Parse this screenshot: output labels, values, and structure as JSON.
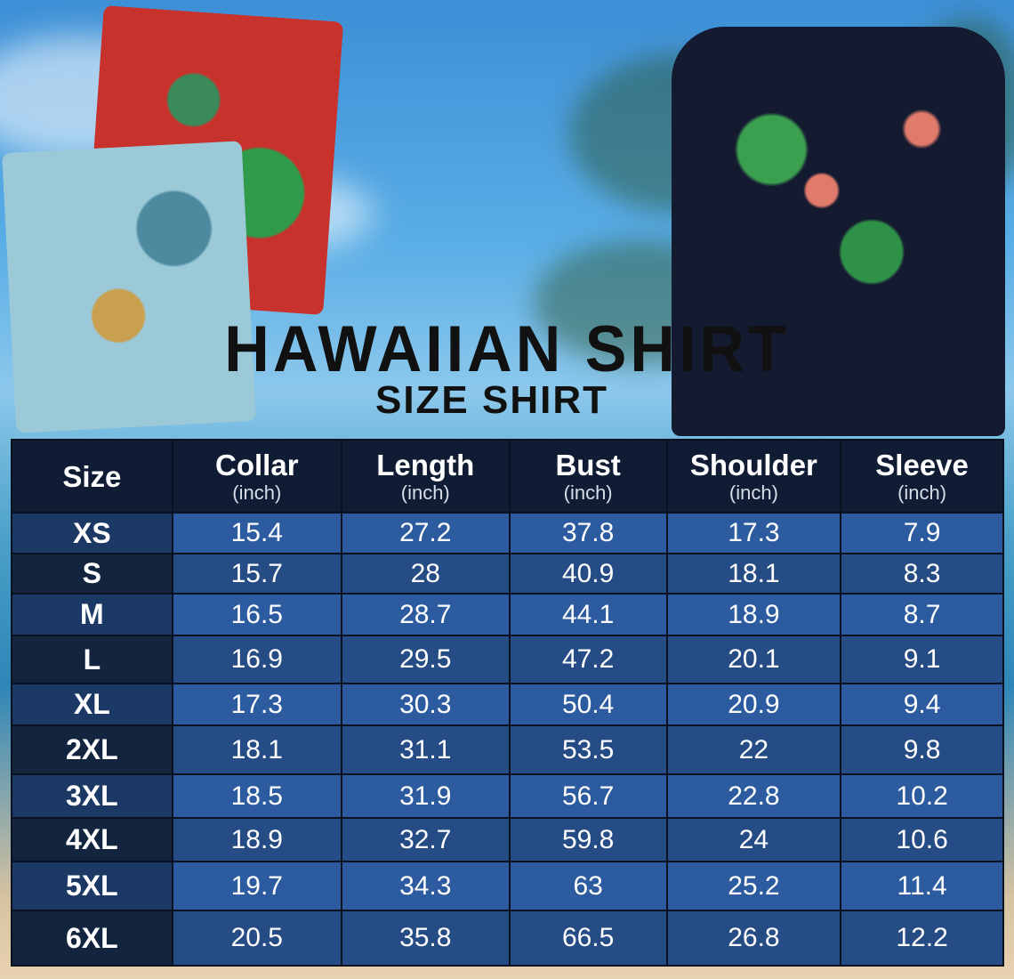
{
  "title": "HAWAIIAN SHIRT",
  "subtitle": "SIZE SHIRT",
  "table": {
    "headers": [
      {
        "label": "Size",
        "unit": ""
      },
      {
        "label": "Collar",
        "unit": "(inch)"
      },
      {
        "label": "Length",
        "unit": "(inch)"
      },
      {
        "label": "Bust",
        "unit": "(inch)"
      },
      {
        "label": "Shoulder",
        "unit": "(inch)"
      },
      {
        "label": "Sleeve",
        "unit": "(inch)"
      }
    ],
    "rows": [
      [
        "XS",
        "15.4",
        "27.2",
        "37.8",
        "17.3",
        "7.9"
      ],
      [
        "S",
        "15.7",
        "28",
        "40.9",
        "18.1",
        "8.3"
      ],
      [
        "M",
        "16.5",
        "28.7",
        "44.1",
        "18.9",
        "8.7"
      ],
      [
        "L",
        "16.9",
        "29.5",
        "47.2",
        "20.1",
        "9.1"
      ],
      [
        "XL",
        "17.3",
        "30.3",
        "50.4",
        "20.9",
        "9.4"
      ],
      [
        "2XL",
        "18.1",
        "31.1",
        "53.5",
        "22",
        "9.8"
      ],
      [
        "3XL",
        "18.5",
        "31.9",
        "56.7",
        "22.8",
        "10.2"
      ],
      [
        "4XL",
        "18.9",
        "32.7",
        "59.8",
        "24",
        "10.6"
      ],
      [
        "5XL",
        "19.7",
        "34.3",
        "63",
        "25.2",
        "11.4"
      ],
      [
        "6XL",
        "20.5",
        "35.8",
        "66.5",
        "26.8",
        "12.2"
      ]
    ]
  },
  "colors": {
    "header": "#0f1c33",
    "row_light": "#2c5c9f",
    "row_dark": "#264c86"
  }
}
